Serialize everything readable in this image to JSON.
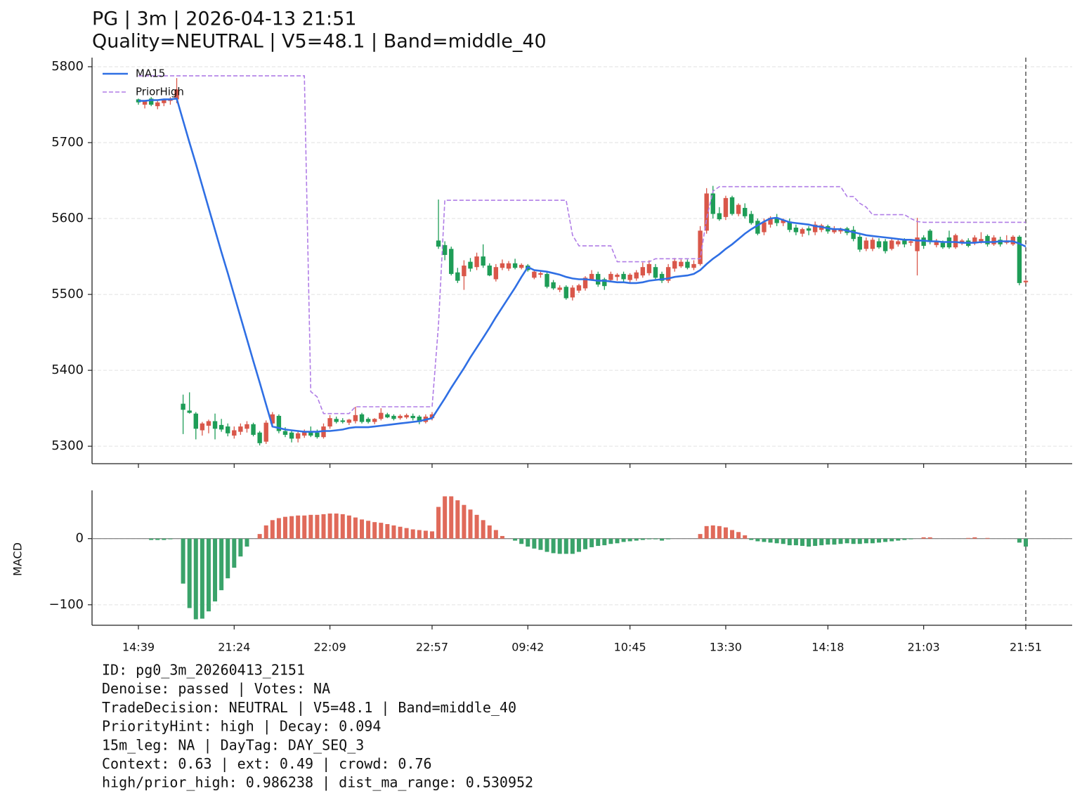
{
  "chart_data": [
    {
      "type": "candlestick",
      "title": "PG | 3m | 2026-04-13 21:51",
      "subtitle": "Quality=NEUTRAL | V5=48.1 | Band=middle_40",
      "up_color": "#d9574a",
      "down_color": "#1e9d57",
      "open": [
        5757,
        5750,
        5758,
        5748,
        5752,
        5755,
        5757,
        5356,
        5347,
        5343,
        5321,
        5327,
        5333,
        5328,
        5326,
        5314,
        5319,
        5323,
        5329,
        5318,
        5306,
        5330,
        5340,
        5320,
        5318,
        5310,
        5314,
        5319,
        5318,
        5312,
        5326,
        5336,
        5334,
        5331,
        5333,
        5342,
        5336,
        5332,
        5336,
        5342,
        5340,
        5337,
        5338,
        5340,
        5339,
        5332,
        5337,
        5571,
        5565,
        5560,
        5529,
        5524,
        5543,
        5536,
        5550,
        5538,
        5520,
        5535,
        5534,
        5541,
        5535,
        5538,
        5522,
        5526,
        5527,
        5516,
        5506,
        5510,
        5496,
        5505,
        5508,
        5520,
        5527,
        5520,
        5519,
        5523,
        5527,
        5519,
        5521,
        5525,
        5528,
        5536,
        5527,
        5518,
        5534,
        5537,
        5543,
        5535,
        5540,
        5584,
        5633,
        5607,
        5602,
        5628,
        5606,
        5614,
        5606,
        5597,
        5582,
        5592,
        5601,
        5594,
        5596,
        5588,
        5580,
        5587,
        5582,
        5585,
        5590,
        5582,
        5583,
        5587,
        5585,
        5576,
        5560,
        5560,
        5570,
        5570,
        5560,
        5566,
        5571,
        5568,
        5557,
        5575,
        5584,
        5565,
        5568,
        5575,
        5562,
        5568,
        5571,
        5568,
        5570,
        5577,
        5566,
        5572,
        5568,
        5566,
        5576,
        5516
      ],
      "high": [
        5758,
        5756,
        5760,
        5755,
        5758,
        5760,
        5785,
        5368,
        5371,
        5345,
        5332,
        5335,
        5343,
        5336,
        5330,
        5326,
        5330,
        5333,
        5331,
        5320,
        5334,
        5345,
        5342,
        5325,
        5321,
        5320,
        5322,
        5326,
        5322,
        5330,
        5341,
        5339,
        5337,
        5336,
        5352,
        5344,
        5338,
        5337,
        5350,
        5344,
        5342,
        5342,
        5343,
        5343,
        5341,
        5342,
        5345,
        5625,
        5570,
        5563,
        5535,
        5545,
        5548,
        5555,
        5566,
        5541,
        5540,
        5546,
        5544,
        5547,
        5541,
        5540,
        5532,
        5530,
        5530,
        5519,
        5512,
        5512,
        5512,
        5514,
        5524,
        5532,
        5530,
        5522,
        5530,
        5528,
        5530,
        5528,
        5532,
        5542,
        5545,
        5540,
        5530,
        5540,
        5548,
        5546,
        5546,
        5545,
        5590,
        5640,
        5643,
        5615,
        5630,
        5630,
        5620,
        5620,
        5610,
        5600,
        5600,
        5603,
        5606,
        5600,
        5600,
        5592,
        5588,
        5590,
        5596,
        5593,
        5592,
        5590,
        5588,
        5589,
        5590,
        5580,
        5575,
        5575,
        5574,
        5573,
        5574,
        5572,
        5574,
        5572,
        5601,
        5578,
        5586,
        5573,
        5571,
        5584,
        5580,
        5573,
        5574,
        5578,
        5582,
        5579,
        5578,
        5576,
        5578,
        5578,
        5578,
        5519
      ],
      "low": [
        5750,
        5745,
        5748,
        5744,
        5748,
        5750,
        5752,
        5316,
        5343,
        5309,
        5314,
        5317,
        5309,
        5319,
        5313,
        5310,
        5315,
        5318,
        5313,
        5301,
        5303,
        5326,
        5317,
        5312,
        5305,
        5305,
        5311,
        5312,
        5310,
        5310,
        5323,
        5330,
        5330,
        5328,
        5330,
        5330,
        5330,
        5329,
        5334,
        5337,
        5334,
        5335,
        5336,
        5334,
        5329,
        5330,
        5334,
        5560,
        5545,
        5525,
        5515,
        5506,
        5530,
        5532,
        5535,
        5524,
        5517,
        5532,
        5531,
        5533,
        5533,
        5530,
        5520,
        5522,
        5508,
        5506,
        5503,
        5493,
        5492,
        5502,
        5505,
        5518,
        5510,
        5506,
        5516,
        5518,
        5516,
        5516,
        5518,
        5522,
        5525,
        5520,
        5515,
        5515,
        5530,
        5535,
        5533,
        5532,
        5538,
        5580,
        5600,
        5597,
        5598,
        5604,
        5603,
        5600,
        5592,
        5578,
        5578,
        5588,
        5590,
        5590,
        5582,
        5578,
        5576,
        5578,
        5578,
        5582,
        5580,
        5580,
        5580,
        5578,
        5570,
        5556,
        5557,
        5557,
        5560,
        5554,
        5558,
        5563,
        5562,
        5564,
        5525,
        5560,
        5566,
        5562,
        5560,
        5560,
        5560,
        5565,
        5562,
        5565,
        5567,
        5563,
        5564,
        5563,
        5566,
        5564,
        5512,
        5514
      ],
      "close": [
        5753,
        5755,
        5750,
        5753,
        5756,
        5758,
        5770,
        5348,
        5344,
        5323,
        5330,
        5333,
        5323,
        5322,
        5317,
        5321,
        5326,
        5329,
        5315,
        5304,
        5331,
        5342,
        5320,
        5315,
        5310,
        5317,
        5320,
        5314,
        5312,
        5326,
        5337,
        5332,
        5332,
        5335,
        5341,
        5332,
        5332,
        5336,
        5344,
        5338,
        5336,
        5340,
        5341,
        5337,
        5332,
        5339,
        5342,
        5563,
        5552,
        5527,
        5518,
        5538,
        5534,
        5550,
        5538,
        5525,
        5536,
        5541,
        5541,
        5535,
        5539,
        5532,
        5530,
        5528,
        5510,
        5508,
        5509,
        5495,
        5509,
        5512,
        5522,
        5527,
        5513,
        5511,
        5527,
        5526,
        5520,
        5526,
        5529,
        5536,
        5540,
        5522,
        5518,
        5536,
        5544,
        5543,
        5535,
        5540,
        5584,
        5633,
        5606,
        5599,
        5627,
        5606,
        5618,
        5603,
        5594,
        5580,
        5595,
        5601,
        5594,
        5598,
        5585,
        5582,
        5586,
        5584,
        5592,
        5591,
        5583,
        5587,
        5586,
        5581,
        5573,
        5559,
        5571,
        5572,
        5562,
        5557,
        5571,
        5570,
        5566,
        5570,
        5575,
        5564,
        5569,
        5570,
        5562,
        5562,
        5578,
        5571,
        5564,
        5575,
        5573,
        5566,
        5575,
        5566,
        5571,
        5576,
        5515,
        5518
      ],
      "series": [
        {
          "name": "MA15",
          "color": "#2f6fe4",
          "dashed": false,
          "values": [
            5755,
            5755,
            5756,
            5756,
            5757,
            5757,
            5758,
            5729,
            5700,
            5672,
            5643,
            5614,
            5585,
            5556,
            5528,
            5499,
            5470,
            5441,
            5412,
            5384,
            5355,
            5326,
            5324,
            5322,
            5321,
            5320,
            5319,
            5319,
            5319,
            5320,
            5320,
            5321,
            5322,
            5324,
            5325,
            5325,
            5325,
            5326,
            5327,
            5328,
            5329,
            5330,
            5331,
            5332,
            5333,
            5335,
            5337,
            5350,
            5363,
            5377,
            5390,
            5403,
            5417,
            5430,
            5443,
            5456,
            5470,
            5483,
            5496,
            5509,
            5523,
            5536,
            5532,
            5531,
            5530,
            5528,
            5526,
            5523,
            5521,
            5520,
            5520,
            5519,
            5518,
            5518,
            5517,
            5516,
            5516,
            5515,
            5515,
            5516,
            5518,
            5519,
            5520,
            5521,
            5523,
            5524,
            5525,
            5527,
            5532,
            5540,
            5547,
            5553,
            5560,
            5566,
            5573,
            5580,
            5586,
            5591,
            5596,
            5600,
            5601,
            5598,
            5595,
            5594,
            5593,
            5592,
            5590,
            5589,
            5587,
            5586,
            5586,
            5584,
            5582,
            5580,
            5578,
            5577,
            5576,
            5575,
            5574,
            5573,
            5572,
            5572,
            5571,
            5571,
            5570,
            5570,
            5569,
            5569,
            5569,
            5568,
            5568,
            5568,
            5569,
            5569,
            5569,
            5570,
            5570,
            5570,
            5567,
            5563
          ]
        },
        {
          "name": "PriorHigh",
          "color": "#b07de6",
          "dashed": true,
          "values": [
            5788,
            5788,
            5788,
            5788,
            5788,
            5788,
            5788,
            5788,
            5788,
            5788,
            5788,
            5788,
            5788,
            5788,
            5788,
            5788,
            5788,
            5788,
            5788,
            5788,
            5788,
            5788,
            5788,
            5788,
            5788,
            5788,
            5788,
            5372,
            5365,
            5343,
            5343,
            5343,
            5343,
            5343,
            5352,
            5352,
            5352,
            5352,
            5352,
            5352,
            5352,
            5352,
            5352,
            5352,
            5352,
            5352,
            5352,
            5460,
            5624,
            5624,
            5624,
            5624,
            5624,
            5624,
            5624,
            5624,
            5624,
            5624,
            5624,
            5624,
            5624,
            5624,
            5624,
            5624,
            5624,
            5624,
            5624,
            5624,
            5578,
            5564,
            5564,
            5564,
            5564,
            5564,
            5564,
            5543,
            5543,
            5543,
            5543,
            5543,
            5543,
            5547,
            5547,
            5547,
            5547,
            5547,
            5547,
            5547,
            5547,
            5600,
            5636,
            5642,
            5642,
            5642,
            5642,
            5642,
            5642,
            5642,
            5642,
            5642,
            5642,
            5642,
            5642,
            5642,
            5642,
            5642,
            5642,
            5642,
            5642,
            5642,
            5642,
            5629,
            5629,
            5620,
            5615,
            5605,
            5605,
            5605,
            5605,
            5605,
            5605,
            5600,
            5596,
            5595,
            5595,
            5595,
            5595,
            5595,
            5595,
            5595,
            5595,
            5595,
            5595,
            5595,
            5595,
            5595,
            5595,
            5595,
            5595,
            5595
          ]
        }
      ],
      "legend": "upper left",
      "ylim": [
        5277,
        5812
      ],
      "yticks": [
        5300,
        5400,
        5500,
        5600,
        5700,
        5800
      ],
      "grid": true
    },
    {
      "type": "bar",
      "y_label": "MACD",
      "up_color": "#e06a5a",
      "down_color": "#3aa36a",
      "categories": [
        "14:39",
        null,
        null,
        null,
        null,
        null,
        null,
        null,
        null,
        null,
        null,
        null,
        null,
        null,
        null,
        "21:24",
        null,
        null,
        null,
        null,
        null,
        null,
        null,
        null,
        null,
        null,
        null,
        null,
        null,
        null,
        "22:09",
        null,
        null,
        null,
        null,
        null,
        null,
        null,
        null,
        null,
        null,
        null,
        null,
        null,
        null,
        null,
        "22:57",
        null,
        null,
        null,
        null,
        null,
        null,
        null,
        null,
        null,
        null,
        null,
        null,
        null,
        null,
        "09:42",
        null,
        null,
        null,
        null,
        null,
        null,
        null,
        null,
        null,
        null,
        null,
        null,
        null,
        null,
        null,
        "10:45",
        null,
        null,
        null,
        null,
        null,
        null,
        null,
        null,
        null,
        null,
        null,
        null,
        null,
        null,
        "13:30",
        null,
        null,
        null,
        null,
        null,
        null,
        null,
        null,
        null,
        null,
        null,
        null,
        null,
        null,
        null,
        "14:18",
        null,
        null,
        null,
        null,
        null,
        null,
        null,
        null,
        null,
        null,
        null,
        null,
        null,
        null,
        "21:03",
        null,
        null,
        null,
        null,
        null,
        null,
        null,
        null,
        null,
        null,
        null,
        null,
        null,
        null,
        null,
        "21:51"
      ],
      "values": [
        0,
        0,
        -2,
        -2,
        -2,
        -1,
        0,
        -68,
        -105,
        -122,
        -121,
        -110,
        -95,
        -78,
        -60,
        -44,
        -27,
        -12,
        0,
        7,
        20,
        28,
        31,
        33,
        34,
        35,
        35,
        36,
        36,
        37,
        38,
        38,
        37,
        35,
        32,
        29,
        27,
        25,
        24,
        22,
        20,
        18,
        16,
        14,
        13,
        12,
        11,
        48,
        64,
        64,
        58,
        51,
        44,
        36,
        28,
        20,
        13,
        4,
        0,
        -3,
        -8,
        -12,
        -15,
        -17,
        -20,
        -22,
        -23,
        -23,
        -23,
        -20,
        -16,
        -13,
        -11,
        -10,
        -8,
        -7,
        -5,
        -4,
        -3,
        -2,
        -1,
        -1,
        -3,
        -1,
        0,
        0,
        0,
        0,
        7,
        19,
        20,
        19,
        17,
        13,
        10,
        5,
        -2,
        -4,
        -5,
        -6,
        -7,
        -8,
        -10,
        -10,
        -11,
        -12,
        -11,
        -10,
        -9,
        -9,
        -8,
        -7,
        -8,
        -8,
        -7,
        -7,
        -6,
        -5,
        -4,
        -3,
        -2,
        -1,
        0,
        2,
        2,
        0,
        0,
        0,
        0,
        0,
        1,
        2,
        0,
        1,
        0,
        0,
        0,
        0,
        -6,
        -12
      ],
      "ylim": [
        -131,
        73
      ],
      "yticks": [
        {
          "value": -100,
          "label": "−100"
        },
        0
      ],
      "grid": true
    }
  ],
  "footer_lines": [
    "ID: pg0_3m_20260413_2151",
    "Denoise: passed | Votes: NA",
    "TradeDecision: NEUTRAL | V5=48.1 | Band=middle_40",
    "PriorityHint: high | Decay: 0.094",
    "15m_leg: NA | DayTag: DAY_SEQ_3",
    "Context: 0.63 | ext: 0.49 | crowd: 0.76",
    "high/prior_high: 0.986238 | dist_ma_range: 0.530952"
  ]
}
